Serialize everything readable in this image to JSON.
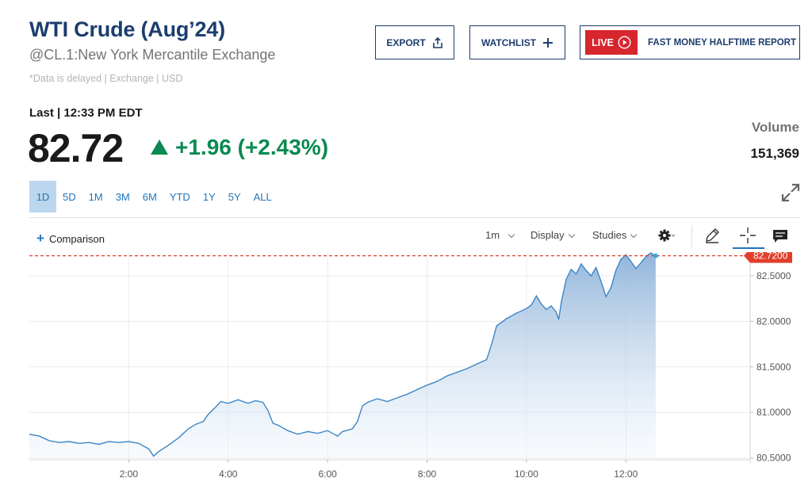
{
  "header": {
    "title": "WTI Crude (Aug’24)",
    "subtitle": "@CL.1:New York Mercantile Exchange",
    "disclaimer": "*Data is delayed | Exchange | USD"
  },
  "actions": {
    "export_label": "EXPORT",
    "watchlist_label": "WATCHLIST",
    "live_label": "LIVE",
    "live_show": "FAST MONEY HALFTIME REPORT"
  },
  "quote": {
    "last_label": "Last | 12:33 PM EDT",
    "price": "82.72",
    "change": "+1.96 (+2.43%)",
    "volume_label": "Volume",
    "volume": "151,369",
    "up_color": "#0a8a51"
  },
  "ranges": [
    "1D",
    "5D",
    "1M",
    "3M",
    "6M",
    "YTD",
    "1Y",
    "5Y",
    "ALL"
  ],
  "active_range": "1D",
  "toolbar": {
    "comparison_label": "Comparison",
    "interval_label": "1m",
    "display_label": "Display",
    "studies_label": "Studies",
    "icons": [
      "gear-icon",
      "pencil-icon",
      "crosshair-icon",
      "comment-icon"
    ]
  },
  "chart_data": {
    "type": "area",
    "x_ticks": [
      "2:00",
      "4:00",
      "6:00",
      "8:00",
      "10:00",
      "12:00"
    ],
    "x_tick_hours": [
      2,
      4,
      6,
      8,
      10,
      12
    ],
    "x_range_hours": [
      0,
      14.5
    ],
    "y_ticks": [
      "82.5000",
      "82.0000",
      "81.5000",
      "81.0000",
      "80.5000"
    ],
    "y_tick_values": [
      82.5,
      82.0,
      81.5,
      81.0,
      80.5
    ],
    "ylim": [
      80.48,
      82.76
    ],
    "last_value": 82.72,
    "last_value_label": "82.7200",
    "last_color": "#e0402b",
    "line_color": "#3d86c6",
    "points": [
      [
        0.0,
        80.76
      ],
      [
        0.2,
        80.74
      ],
      [
        0.4,
        80.69
      ],
      [
        0.6,
        80.67
      ],
      [
        0.8,
        80.68
      ],
      [
        1.0,
        80.66
      ],
      [
        1.2,
        80.67
      ],
      [
        1.4,
        80.65
      ],
      [
        1.6,
        80.68
      ],
      [
        1.8,
        80.67
      ],
      [
        2.0,
        80.68
      ],
      [
        2.2,
        80.66
      ],
      [
        2.4,
        80.6
      ],
      [
        2.5,
        80.52
      ],
      [
        2.6,
        80.57
      ],
      [
        2.8,
        80.64
      ],
      [
        3.0,
        80.72
      ],
      [
        3.1,
        80.77
      ],
      [
        3.2,
        80.82
      ],
      [
        3.35,
        80.87
      ],
      [
        3.5,
        80.9
      ],
      [
        3.6,
        80.98
      ],
      [
        3.75,
        81.06
      ],
      [
        3.85,
        81.12
      ],
      [
        4.0,
        81.1
      ],
      [
        4.2,
        81.14
      ],
      [
        4.4,
        81.1
      ],
      [
        4.55,
        81.13
      ],
      [
        4.7,
        81.11
      ],
      [
        4.8,
        81.02
      ],
      [
        4.9,
        80.88
      ],
      [
        5.0,
        80.86
      ],
      [
        5.2,
        80.8
      ],
      [
        5.4,
        80.76
      ],
      [
        5.6,
        80.79
      ],
      [
        5.8,
        80.77
      ],
      [
        6.0,
        80.8
      ],
      [
        6.1,
        80.77
      ],
      [
        6.2,
        80.74
      ],
      [
        6.3,
        80.79
      ],
      [
        6.5,
        80.82
      ],
      [
        6.6,
        80.9
      ],
      [
        6.7,
        81.07
      ],
      [
        6.8,
        81.11
      ],
      [
        7.0,
        81.15
      ],
      [
        7.2,
        81.12
      ],
      [
        7.4,
        81.16
      ],
      [
        7.6,
        81.2
      ],
      [
        7.8,
        81.25
      ],
      [
        8.0,
        81.3
      ],
      [
        8.2,
        81.34
      ],
      [
        8.4,
        81.4
      ],
      [
        8.6,
        81.44
      ],
      [
        8.8,
        81.48
      ],
      [
        9.0,
        81.53
      ],
      [
        9.2,
        81.58
      ],
      [
        9.3,
        81.75
      ],
      [
        9.4,
        81.95
      ],
      [
        9.6,
        82.03
      ],
      [
        9.8,
        82.09
      ],
      [
        10.0,
        82.14
      ],
      [
        10.1,
        82.18
      ],
      [
        10.2,
        82.28
      ],
      [
        10.3,
        82.19
      ],
      [
        10.4,
        82.13
      ],
      [
        10.5,
        82.17
      ],
      [
        10.6,
        82.1
      ],
      [
        10.65,
        82.02
      ],
      [
        10.7,
        82.21
      ],
      [
        10.8,
        82.46
      ],
      [
        10.9,
        82.57
      ],
      [
        11.0,
        82.52
      ],
      [
        11.1,
        82.63
      ],
      [
        11.2,
        82.56
      ],
      [
        11.3,
        82.5
      ],
      [
        11.4,
        82.59
      ],
      [
        11.5,
        82.44
      ],
      [
        11.6,
        82.27
      ],
      [
        11.7,
        82.37
      ],
      [
        11.8,
        82.56
      ],
      [
        11.9,
        82.68
      ],
      [
        12.0,
        82.73
      ],
      [
        12.1,
        82.66
      ],
      [
        12.2,
        82.58
      ],
      [
        12.3,
        82.64
      ],
      [
        12.4,
        82.71
      ],
      [
        12.5,
        82.75
      ],
      [
        12.6,
        82.72
      ]
    ]
  }
}
